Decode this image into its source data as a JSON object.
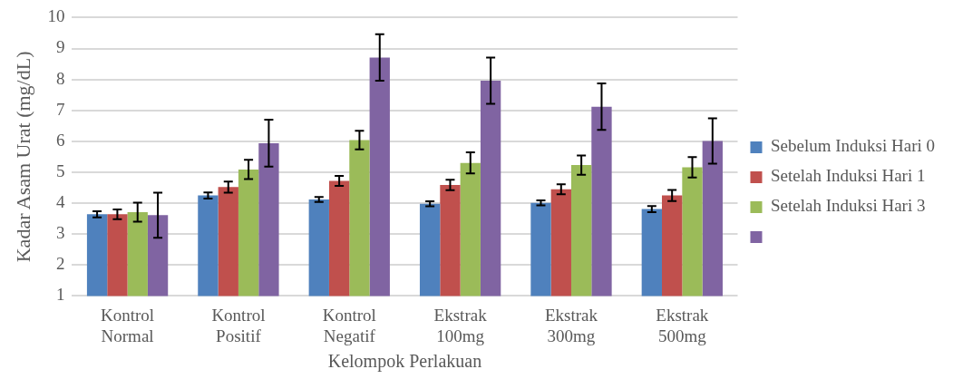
{
  "chart_data": {
    "type": "bar",
    "xlabel": "Kelompok Perlakuan",
    "ylabel": "Kadar Asam Urat (mg/dL)",
    "categories": [
      "Kontrol Normal",
      "Kontrol Positif",
      "Kontrol Negatif",
      "Ekstrak 100mg",
      "Ekstrak 300mg",
      "Ekstrak 500mg"
    ],
    "series": [
      {
        "name": "Sebelum Induksi Hari 0",
        "color": "#4f81bd",
        "values": [
          3.64,
          4.25,
          4.12,
          3.98,
          4.01,
          3.81
        ],
        "errors": [
          0.1,
          0.1,
          0.08,
          0.08,
          0.08,
          0.1
        ]
      },
      {
        "name": "Setelah Induksi Hari 1",
        "color": "#c0504d",
        "values": [
          3.64,
          4.52,
          4.72,
          4.59,
          4.45,
          4.25
        ],
        "errors": [
          0.16,
          0.18,
          0.16,
          0.17,
          0.16,
          0.18
        ]
      },
      {
        "name": "Setelah Induksi Hari 3",
        "color": "#9bbb59",
        "values": [
          3.71,
          5.09,
          6.04,
          5.3,
          5.23,
          5.16
        ],
        "errors": [
          0.31,
          0.31,
          0.3,
          0.34,
          0.31,
          0.33
        ]
      },
      {
        "color": "#8064a2",
        "values": [
          3.61,
          5.94,
          8.71,
          7.96,
          7.12,
          6.01
        ],
        "errors": [
          0.73,
          0.76,
          0.75,
          0.75,
          0.75,
          0.73
        ]
      }
    ],
    "ylim": [
      1,
      10
    ],
    "yticks": [
      1,
      2,
      3,
      4,
      5,
      6,
      7,
      8,
      9,
      10
    ],
    "grid": "y",
    "legend": "right"
  }
}
